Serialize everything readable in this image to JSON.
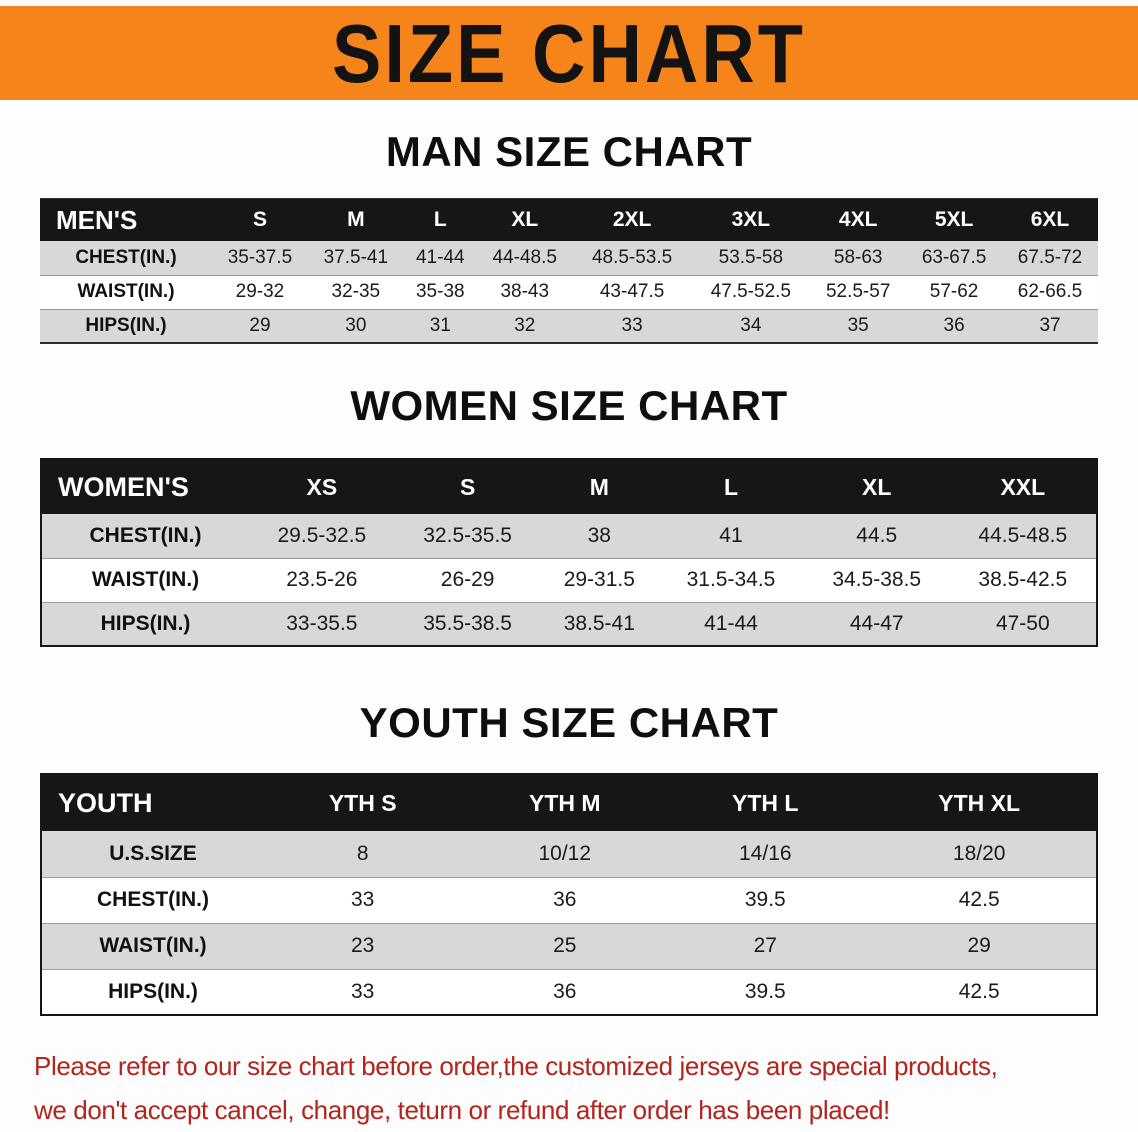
{
  "banner": {
    "title": "SIZE CHART",
    "bg_color": "#F5851B",
    "text_color": "#131313"
  },
  "charts": [
    {
      "id": "men",
      "heading": "MAN SIZE CHART",
      "header": [
        "MEN'S",
        "S",
        "M",
        "L",
        "XL",
        "2XL",
        "3XL",
        "4XL",
        "5XL",
        "6XL"
      ],
      "rows": [
        [
          "CHEST(IN.)",
          "35-37.5",
          "37.5-41",
          "41-44",
          "44-48.5",
          "48.5-53.5",
          "53.5-58",
          "58-63",
          "63-67.5",
          "67.5-72"
        ],
        [
          "WAIST(IN.)",
          "29-32",
          "32-35",
          "35-38",
          "38-43",
          "43-47.5",
          "47.5-52.5",
          "52.5-57",
          "57-62",
          "62-66.5"
        ],
        [
          "HIPS(IN.)",
          "29",
          "30",
          "31",
          "32",
          "33",
          "34",
          "35",
          "36",
          "37"
        ]
      ]
    },
    {
      "id": "women",
      "heading": "WOMEN SIZE CHART",
      "header": [
        "WOMEN'S",
        "XS",
        "S",
        "M",
        "L",
        "XL",
        "XXL"
      ],
      "rows": [
        [
          "CHEST(IN.)",
          "29.5-32.5",
          "32.5-35.5",
          "38",
          "41",
          "44.5",
          "44.5-48.5"
        ],
        [
          "WAIST(IN.)",
          "23.5-26",
          "26-29",
          "29-31.5",
          "31.5-34.5",
          "34.5-38.5",
          "38.5-42.5"
        ],
        [
          "HIPS(IN.)",
          "33-35.5",
          "35.5-38.5",
          "38.5-41",
          "41-44",
          "44-47",
          "47-50"
        ]
      ]
    },
    {
      "id": "youth",
      "heading": "YOUTH SIZE CHART",
      "header": [
        "YOUTH",
        "YTH S",
        "YTH M",
        "YTH L",
        "YTH XL"
      ],
      "rows": [
        [
          "U.S.SIZE",
          "8",
          "10/12",
          "14/16",
          "18/20"
        ],
        [
          "CHEST(IN.)",
          "33",
          "36",
          "39.5",
          "42.5"
        ],
        [
          "WAIST(IN.)",
          "23",
          "25",
          "27",
          "29"
        ],
        [
          "HIPS(IN.)",
          "33",
          "36",
          "39.5",
          "42.5"
        ]
      ]
    }
  ],
  "notice": {
    "line1": "Please refer to our size chart before order,the customized jerseys are special products,",
    "line2": "we don't accept cancel, change, teturn or refund after order has been placed!",
    "color": "#B3241C"
  },
  "colors": {
    "banner_orange": "#F5851B",
    "table_header_bg": "#161616",
    "row_alt_gray": "#D8D8D8",
    "notice_red": "#B3241C"
  }
}
